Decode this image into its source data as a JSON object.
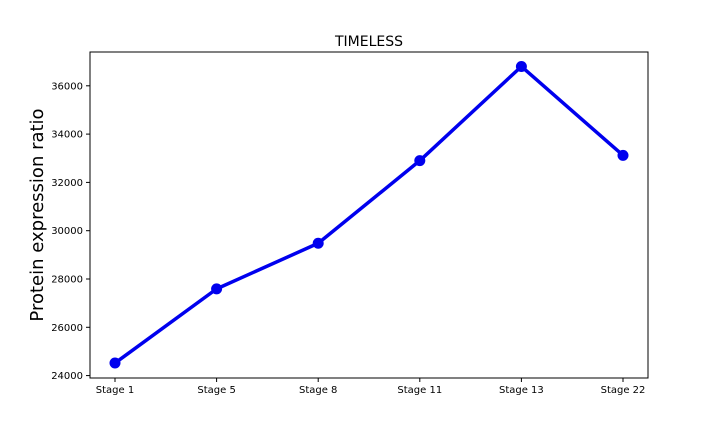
{
  "chart_data": {
    "type": "line",
    "title": "TIMELESS",
    "xlabel": "",
    "ylabel": "Protein expression ratio",
    "categories": [
      "Stage 1",
      "Stage 5",
      "Stage 8",
      "Stage 11",
      "Stage 13",
      "Stage 22"
    ],
    "series": [
      {
        "values": [
          24520,
          27590,
          29480,
          32900,
          36800,
          33120
        ],
        "color": "#0000ee",
        "marker": "circle"
      }
    ],
    "ylim": [
      23900,
      37400
    ],
    "yticks": [
      24000,
      26000,
      28000,
      30000,
      32000,
      34000,
      36000
    ],
    "grid": false,
    "legend": "none"
  }
}
